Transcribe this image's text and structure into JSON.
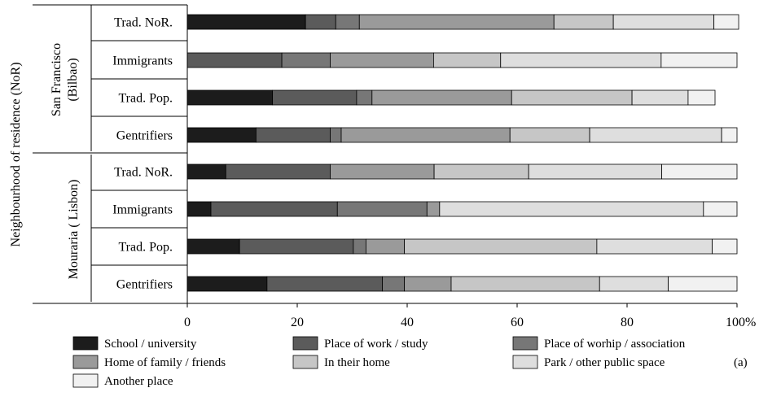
{
  "chart_data": {
    "type": "bar",
    "orientation": "horizontal",
    "stacked": true,
    "percent": true,
    "outer_axis_label": "Neighbourhood of residence (NoR)",
    "panel_label": "(a)",
    "groups": [
      {
        "label": "San Francisco (Bilbao)",
        "label_lines": [
          "San Francisco",
          "(Bilbao)"
        ]
      },
      {
        "label": "Mouraria ( Lisbon)",
        "label_lines": [
          "Mouraria ( Lisbon)"
        ]
      }
    ],
    "categories": [
      "Trad. NoR.",
      "Immigrants",
      "Trad. Pop.",
      "Gentrifiers",
      "Trad. NoR.",
      "Immigrants",
      "Trad. Pop.",
      "Gentrifiers"
    ],
    "category_group": [
      0,
      0,
      0,
      0,
      1,
      1,
      1,
      1
    ],
    "series": [
      {
        "name": "School / university",
        "color": "#1c1c1c",
        "values": [
          21.5,
          0,
          15.5,
          12.5,
          7,
          4.3,
          9.5,
          14.5
        ]
      },
      {
        "name": "Place of work / study",
        "color": "#5b5b5b",
        "values": [
          5.5,
          17.2,
          15.3,
          13.5,
          19,
          23,
          20.7,
          21
        ]
      },
      {
        "name": "Place of worhip / association",
        "color": "#777777",
        "values": [
          4.3,
          8.8,
          2.8,
          2,
          0,
          16.3,
          2.3,
          4
        ]
      },
      {
        "name": "Home of family / friends",
        "color": "#9a9a9a",
        "values": [
          35.4,
          18.8,
          25.4,
          30.7,
          18.9,
          2.3,
          7,
          8.5
        ]
      },
      {
        "name": "In their home",
        "color": "#c6c6c6",
        "values": [
          10.8,
          12.2,
          21.9,
          14.5,
          17.2,
          0,
          35,
          27
        ]
      },
      {
        "name": "Park / other public space",
        "color": "#dedede",
        "values": [
          18.3,
          29.2,
          10.2,
          24,
          24.2,
          48,
          21,
          12.5
        ]
      },
      {
        "name": "Another place",
        "color": "#f1f1f1",
        "values": [
          4.5,
          13.8,
          4.9,
          2.8,
          13.7,
          6.1,
          4.5,
          12.5
        ]
      }
    ],
    "x_ticks": [
      "0",
      "20",
      "40",
      "60",
      "80",
      "100%"
    ],
    "xlim": [
      0,
      100
    ],
    "legend_position": "bottom",
    "grid": false
  }
}
